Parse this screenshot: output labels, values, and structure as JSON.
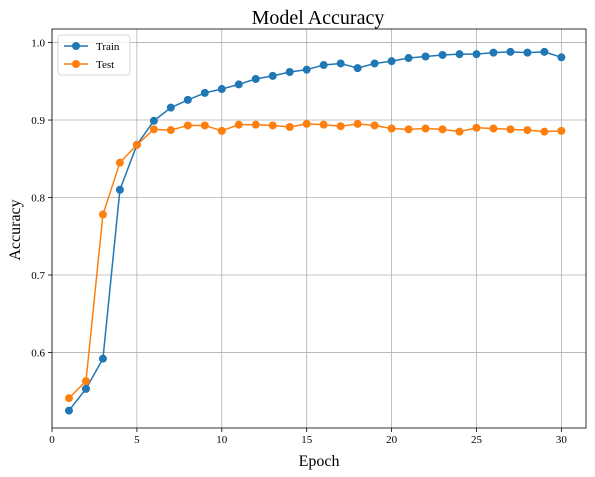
{
  "chart_data": {
    "type": "line",
    "title": "Model Accuracy",
    "xlabel": "Epoch",
    "ylabel": "Accuracy",
    "xlim": [
      0,
      31.45
    ],
    "ylim": [
      0.5025,
      1.0175
    ],
    "xticks": [
      0,
      5,
      10,
      15,
      20,
      25,
      30
    ],
    "yticks": [
      0.6,
      0.7,
      0.8,
      0.9,
      1.0
    ],
    "xtick_labels": [
      "0",
      "5",
      "10",
      "15",
      "20",
      "25",
      "30"
    ],
    "ytick_labels": [
      "0.6",
      "0.7",
      "0.8",
      "0.9",
      "1.0"
    ],
    "grid": true,
    "legend_position": "top-left",
    "x": [
      1,
      2,
      3,
      4,
      5,
      6,
      7,
      8,
      9,
      10,
      11,
      12,
      13,
      14,
      15,
      16,
      17,
      18,
      19,
      20,
      21,
      22,
      23,
      24,
      25,
      26,
      27,
      28,
      29,
      30
    ],
    "series": [
      {
        "name": "Train",
        "color": "#1f77b4",
        "marker": "circle",
        "values": [
          0.525,
          0.553,
          0.592,
          0.81,
          0.868,
          0.899,
          0.916,
          0.926,
          0.935,
          0.94,
          0.946,
          0.953,
          0.957,
          0.962,
          0.965,
          0.971,
          0.973,
          0.967,
          0.973,
          0.976,
          0.98,
          0.982,
          0.984,
          0.985,
          0.985,
          0.987,
          0.988,
          0.987,
          0.988,
          0.981
        ]
      },
      {
        "name": "Test",
        "color": "#ff7f0e",
        "marker": "circle",
        "values": [
          0.541,
          0.563,
          0.778,
          0.845,
          0.868,
          0.888,
          0.887,
          0.893,
          0.893,
          0.886,
          0.894,
          0.894,
          0.893,
          0.891,
          0.895,
          0.894,
          0.892,
          0.895,
          0.893,
          0.889,
          0.888,
          0.889,
          0.888,
          0.885,
          0.89,
          0.889,
          0.888,
          0.887,
          0.885,
          0.886
        ]
      }
    ]
  }
}
